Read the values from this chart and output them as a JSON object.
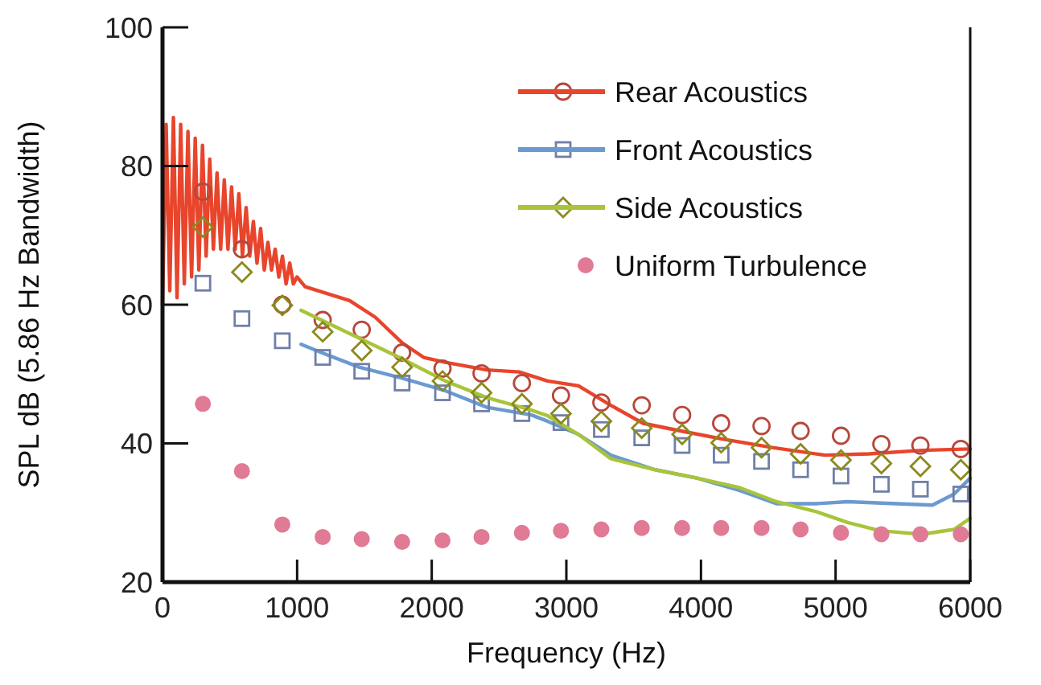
{
  "chart_data": {
    "type": "line",
    "xlabel": "Frequency (Hz)",
    "ylabel": "SPL dB (5.86 Hz Bandwidth)",
    "xlim": [
      0,
      6000
    ],
    "ylim": [
      20,
      100
    ],
    "xticks": [
      0,
      1000,
      2000,
      3000,
      4000,
      5000,
      6000
    ],
    "yticks": [
      20,
      40,
      60,
      80,
      100
    ],
    "legend": "top right",
    "grid": false,
    "series": [
      {
        "name": "Rear Acoustics",
        "color": "#e8452c",
        "x": [
          0,
          27,
          54,
          81,
          108,
          135,
          162,
          189,
          216,
          243,
          270,
          297,
          324,
          351,
          378,
          405,
          432,
          459,
          486,
          513,
          540,
          567,
          594,
          621,
          648,
          675,
          702,
          729,
          756,
          783,
          810,
          837,
          864,
          891,
          918,
          945,
          972,
          999,
          1060,
          1390,
          1580,
          1780,
          1940,
          2100,
          2410,
          2650,
          2860,
          3090,
          3330,
          3570,
          3850,
          4170,
          4530,
          4920,
          5250,
          5640,
          6000
        ],
        "values": [
          60,
          86,
          62,
          87,
          61,
          86,
          63,
          85,
          64,
          84,
          65,
          83,
          67,
          81,
          68,
          79,
          68,
          78,
          68,
          77,
          68,
          76,
          67,
          74,
          67,
          72,
          66,
          71,
          65,
          69,
          65,
          68,
          64,
          67,
          63,
          66,
          63,
          64,
          62.6,
          60.6,
          58.2,
          54.5,
          52.4,
          51.7,
          50.6,
          50.3,
          49,
          48.3,
          45.5,
          42.9,
          41.8,
          40.6,
          39.4,
          38.3,
          38.5,
          39,
          39.2
        ]
      },
      {
        "type": "scatter",
        "marker": "circle",
        "color": "#b8473a",
        "x": [
          300,
          590,
          890,
          1190,
          1480,
          1780,
          2080,
          2370,
          2670,
          2960,
          3260,
          3560,
          3860,
          4150,
          4450,
          4740,
          5040,
          5340,
          5630,
          5930
        ],
        "values": [
          76.3,
          68,
          60,
          57.8,
          56.4,
          53.1,
          50.8,
          50.1,
          48.7,
          46.9,
          45.9,
          45.5,
          44.1,
          42.9,
          42.5,
          41.8,
          41.1,
          39.9,
          39.7,
          39.2
        ]
      },
      {
        "name": "Front Acoustics",
        "color": "#6a9ad0",
        "x": [
          1030,
          1180,
          1460,
          1780,
          2100,
          2410,
          2740,
          2860,
          3090,
          3330,
          3660,
          3970,
          4290,
          4560,
          4850,
          5090,
          5450,
          5720,
          5880,
          6000
        ],
        "values": [
          54.3,
          53.1,
          51,
          49.4,
          47.6,
          45.2,
          44.1,
          43.2,
          41.3,
          38.3,
          36.2,
          35,
          33.2,
          31.3,
          31.3,
          31.6,
          31.3,
          31.1,
          32.7,
          35
        ]
      },
      {
        "type": "scatter",
        "marker": "square",
        "color": "#6f7fa8",
        "x": [
          300,
          590,
          890,
          1190,
          1480,
          1780,
          2080,
          2370,
          2670,
          2960,
          3260,
          3560,
          3860,
          4150,
          4450,
          4740,
          5040,
          5340,
          5630,
          5930
        ],
        "values": [
          63.1,
          58,
          54.8,
          52.4,
          50.4,
          48.7,
          47.3,
          45.7,
          44.3,
          43,
          42,
          40.8,
          39.7,
          38.3,
          37.4,
          36.2,
          35.3,
          34.1,
          33.4,
          32.7
        ]
      },
      {
        "name": "Side Acoustics",
        "color": "#a8c43a",
        "x": [
          1030,
          1460,
          1780,
          2100,
          2410,
          2740,
          2860,
          3090,
          3330,
          3660,
          3970,
          4290,
          4560,
          4850,
          5090,
          5330,
          5640,
          5880,
          6000
        ],
        "values": [
          59.2,
          55.2,
          52.2,
          49,
          46.6,
          44.8,
          44,
          41.3,
          37.8,
          36.2,
          35,
          33.6,
          31.6,
          30.2,
          28.6,
          27.4,
          26.9,
          27.6,
          29.2
        ]
      },
      {
        "type": "scatter",
        "marker": "diamond",
        "color": "#8a8a1e",
        "x": [
          300,
          590,
          890,
          1190,
          1480,
          1780,
          2080,
          2370,
          2670,
          2960,
          3260,
          3560,
          3860,
          4150,
          4450,
          4740,
          5040,
          5340,
          5630,
          5930
        ],
        "values": [
          71.2,
          64.7,
          59.9,
          56.1,
          53.4,
          51,
          49,
          47.3,
          45.7,
          44.3,
          43.2,
          42.2,
          41.3,
          40.1,
          39.4,
          38.5,
          37.6,
          37.1,
          36.7,
          36.2
        ]
      },
      {
        "name": "Uniform Turbulence",
        "type": "scatter",
        "marker": "circle",
        "color": "#e07a95",
        "x": [
          300,
          590,
          890,
          1190,
          1480,
          1780,
          2080,
          2370,
          2670,
          2960,
          3260,
          3560,
          3860,
          4150,
          4450,
          4740,
          5040,
          5340,
          5630,
          5930
        ],
        "values": [
          45.7,
          36,
          28.3,
          26.5,
          26.2,
          25.8,
          26,
          26.5,
          27.1,
          27.4,
          27.6,
          27.8,
          27.8,
          27.8,
          27.8,
          27.6,
          27.1,
          26.9,
          26.9,
          26.9
        ]
      }
    ]
  }
}
